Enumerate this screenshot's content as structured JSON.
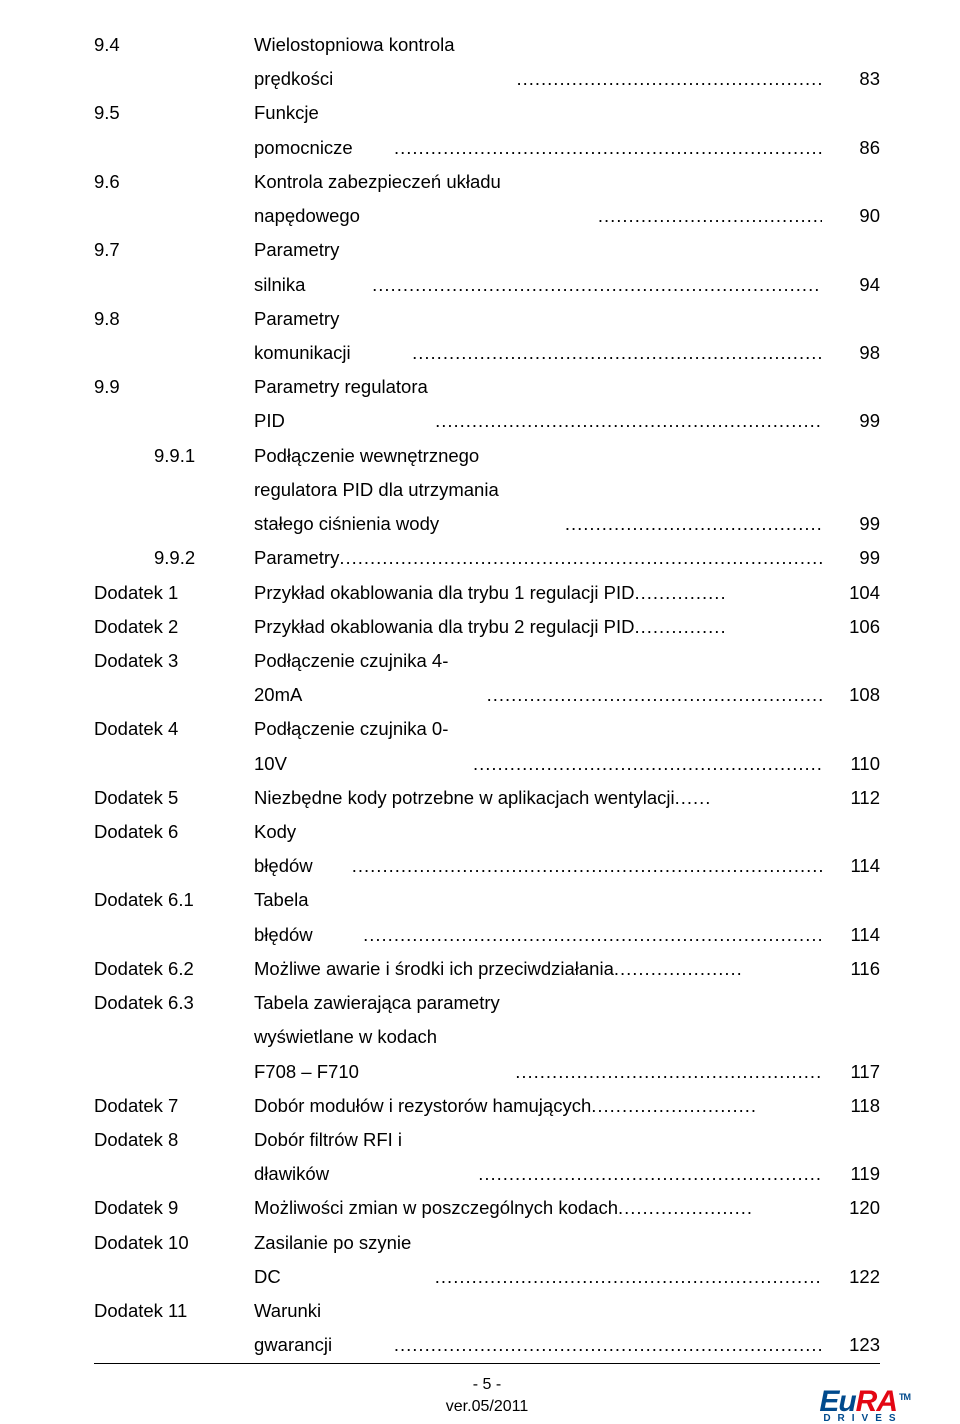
{
  "toc": [
    {
      "num": "9.4",
      "indent": false,
      "title": "Wielostopniowa kontrola prędkości",
      "leader": "......................................................",
      "page": "83"
    },
    {
      "num": "9.5",
      "indent": false,
      "title": "Funkcje pomocnicze",
      "leader": "....................................................................................",
      "page": "86"
    },
    {
      "num": "9.6",
      "indent": false,
      "title": "Kontrola zabezpieczeń układu napędowego",
      "leader": "......................................",
      "page": "90"
    },
    {
      "num": "9.7",
      "indent": false,
      "title": "Parametry silnika",
      "leader": "........................................................................................",
      "page": "94"
    },
    {
      "num": "9.8",
      "indent": false,
      "title": "Parametry komunikacji",
      "leader": "...............................................................................",
      "page": "98"
    },
    {
      "num": "9.9",
      "indent": false,
      "title": "Parametry regulatora PID",
      "leader": ".........................................................................",
      "page": "99"
    },
    {
      "num": "9.9.1",
      "indent": true,
      "title": "Podłączenie wewnętrznego regulatora PID dla utrzymania\nstałego ciśnienia wody",
      "leader": "................................................................",
      "page": "99"
    },
    {
      "num": "9.9.2",
      "indent": true,
      "title": "Parametry",
      "leader": "..........................................................................................",
      "page": "99"
    },
    {
      "num": "Dodatek 1",
      "indent": false,
      "title": "Przykład okablowania dla trybu 1 regulacji PID",
      "leader": "...............",
      "page": "104"
    },
    {
      "num": "Dodatek 2",
      "indent": false,
      "title": "Przykład okablowania dla trybu 2 regulacji PID",
      "leader": "...............",
      "page": "106"
    },
    {
      "num": "Dodatek 3",
      "indent": false,
      "title": "Podłączenie czujnika 4-20mA",
      "leader": ".........................................................",
      "page": "108"
    },
    {
      "num": "Dodatek 4",
      "indent": false,
      "title": "Podłączenie czujnika 0-10V",
      "leader": "...........................................................",
      "page": "110"
    },
    {
      "num": "Dodatek 5",
      "indent": false,
      "title": "Niezbędne kody potrzebne w aplikacjach wentylacji",
      "leader": "......",
      "page": "112"
    },
    {
      "num": "Dodatek 6",
      "indent": false,
      "title": "Kody błędów",
      "leader": "...................................................................................",
      "page": "114"
    },
    {
      "num": "Dodatek 6.1",
      "indent": false,
      "title": "Tabela błędów",
      "leader": ".................................................................................",
      "page": "114"
    },
    {
      "num": "Dodatek 6.2",
      "indent": false,
      "title": "Możliwe awarie i środki ich przeciwdziałania",
      "leader": ".....................",
      "page": "116"
    },
    {
      "num": "Dodatek 6.3",
      "indent": false,
      "title": "Tabela zawierająca parametry wyświetlane w kodach\nF708 – F710",
      "leader": "...................................................................................",
      "page": "117"
    },
    {
      "num": "Dodatek 7",
      "indent": false,
      "title": "Dobór modułów i rezystorów hamujących",
      "leader": "...........................",
      "page": "118"
    },
    {
      "num": "Dodatek 8",
      "indent": false,
      "title": "Dobór filtrów RFI i dławików",
      "leader": ".........................................................",
      "page": "119"
    },
    {
      "num": "Dodatek 9",
      "indent": false,
      "title": "Możliwości zmian w poszczególnych kodach",
      "leader": "......................",
      "page": "120"
    },
    {
      "num": "Dodatek 10",
      "indent": false,
      "title": "Zasilanie po szynie DC",
      "leader": "..................................................................",
      "page": "122"
    },
    {
      "num": "Dodatek 11",
      "indent": false,
      "title": "Warunki gwarancji",
      "leader": "...........................................................................",
      "page": "123"
    }
  ],
  "footer": {
    "page_num": "- 5 -",
    "version": "ver.05/2011"
  },
  "logo": {
    "name_part1": "Eu",
    "name_part2": "RA",
    "tm": "TM",
    "sub": "DRIVES",
    "color_primary": "#004a8d",
    "color_accent": "#e30613"
  }
}
